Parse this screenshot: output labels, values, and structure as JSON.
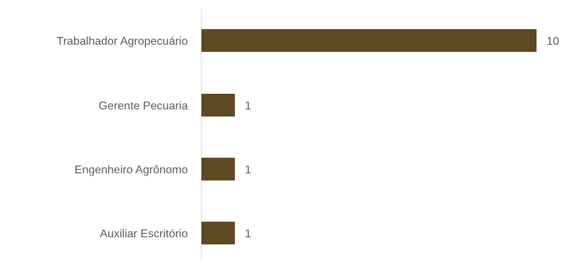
{
  "chart_data": {
    "type": "bar",
    "orientation": "horizontal",
    "categories": [
      "Trabalhador Agropecuário",
      "Gerente Pecuaria",
      "Engenheiro Agrônomo",
      "Auxiliar Escritório"
    ],
    "values": [
      10,
      1,
      1,
      1
    ],
    "data_labels": [
      "10",
      "1",
      "1",
      "1"
    ],
    "title": "",
    "xlabel": "",
    "ylabel": "",
    "xlim": [
      0,
      10
    ],
    "grid": false,
    "legend": "none",
    "colors": {
      "bar": "#5c4a25",
      "axis_line": "#d9d9d9",
      "label_text": "#595959"
    }
  }
}
